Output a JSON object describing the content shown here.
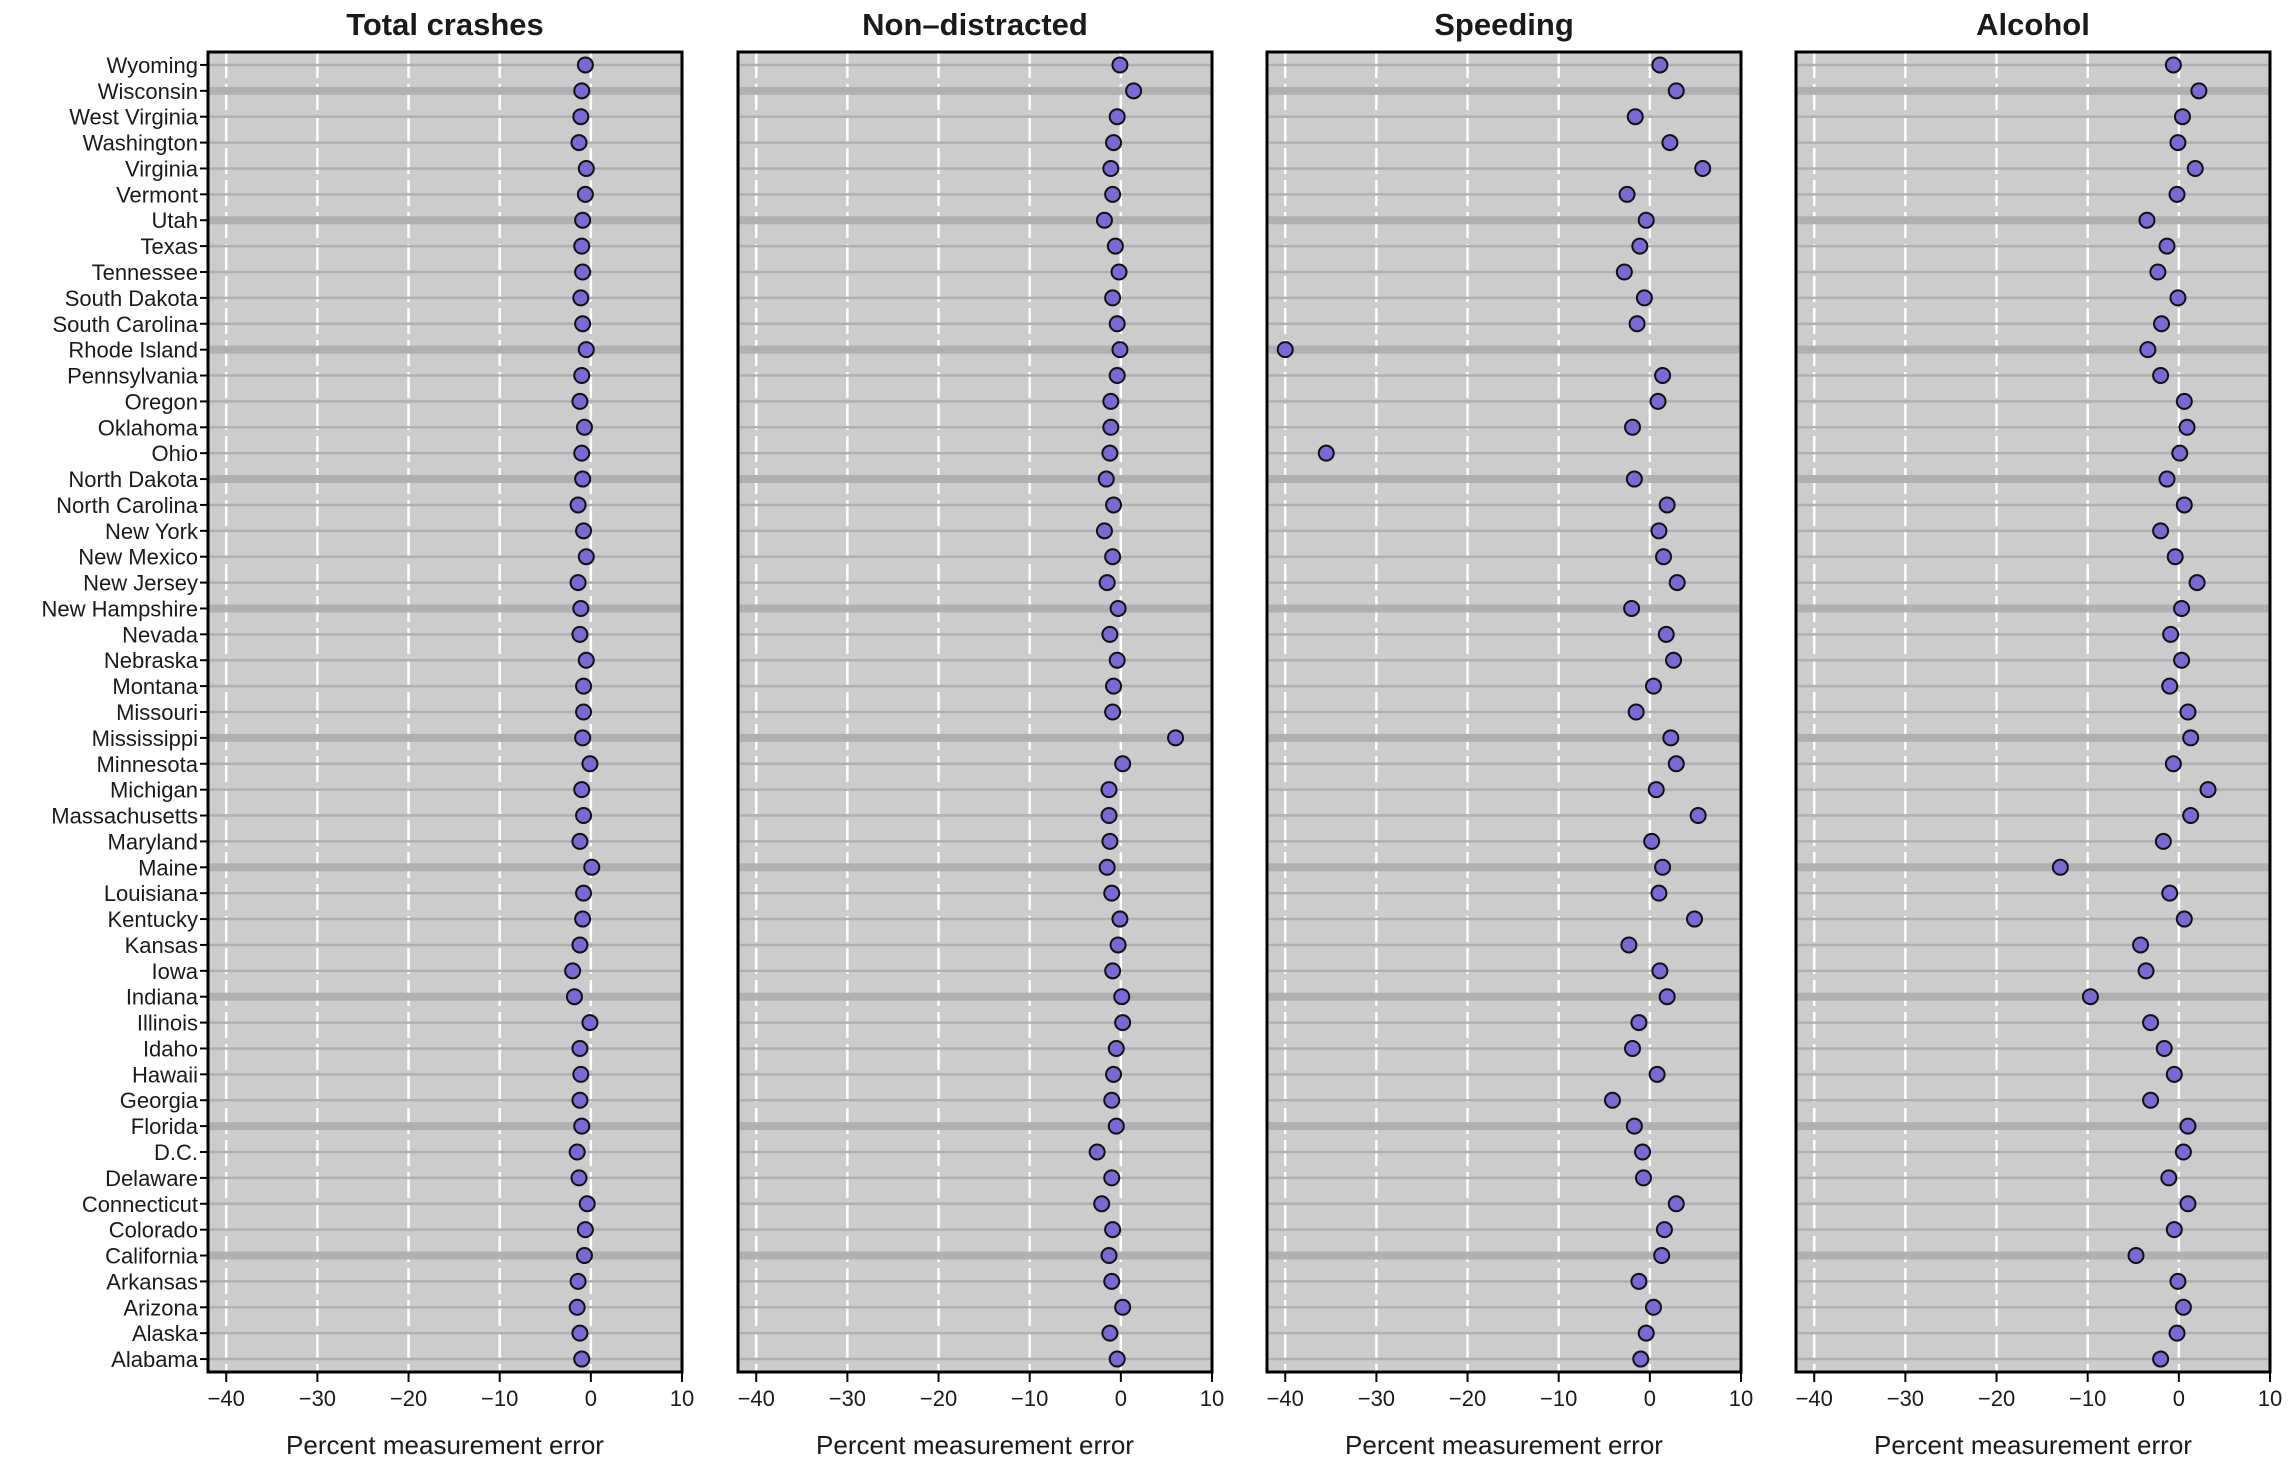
{
  "chart_data": {
    "type": "scatter",
    "xlabel": "Percent measurement error",
    "xlim": [
      -42,
      10
    ],
    "x_ticks": [
      -40,
      -30,
      -20,
      -10,
      0,
      10
    ],
    "grid": true,
    "point_color": "#7b68d4",
    "panel_background": "#cccccc",
    "states": [
      "Wyoming",
      "Wisconsin",
      "West Virginia",
      "Washington",
      "Virginia",
      "Vermont",
      "Utah",
      "Texas",
      "Tennessee",
      "South Dakota",
      "South Carolina",
      "Rhode Island",
      "Pennsylvania",
      "Oregon",
      "Oklahoma",
      "Ohio",
      "North Dakota",
      "North Carolina",
      "New York",
      "New Mexico",
      "New Jersey",
      "New Hampshire",
      "Nevada",
      "Nebraska",
      "Montana",
      "Missouri",
      "Mississippi",
      "Minnesota",
      "Michigan",
      "Massachusetts",
      "Maryland",
      "Maine",
      "Louisiana",
      "Kentucky",
      "Kansas",
      "Iowa",
      "Indiana",
      "Illinois",
      "Idaho",
      "Hawaii",
      "Georgia",
      "Florida",
      "D.C.",
      "Delaware",
      "Connecticut",
      "Colorado",
      "California",
      "Arkansas",
      "Arizona",
      "Alaska",
      "Alabama"
    ],
    "panels": [
      {
        "title": "Total crashes",
        "values": [
          -0.6,
          -1.0,
          -1.1,
          -1.3,
          -0.5,
          -0.6,
          -0.9,
          -1.0,
          -0.9,
          -1.1,
          -0.9,
          -0.5,
          -1.0,
          -1.2,
          -0.7,
          -1.0,
          -0.9,
          -1.4,
          -0.8,
          -0.5,
          -1.4,
          -1.1,
          -1.2,
          -0.5,
          -0.8,
          -0.8,
          -0.9,
          -0.1,
          -1.0,
          -0.8,
          -1.2,
          0.1,
          -0.8,
          -0.9,
          -1.2,
          -2.0,
          -1.8,
          -0.1,
          -1.2,
          -1.1,
          -1.2,
          -1.0,
          -1.5,
          -1.3,
          -0.4,
          -0.6,
          -0.7,
          -1.4,
          -1.5,
          -1.2,
          -1.0
        ]
      },
      {
        "title": "Non–distracted",
        "values": [
          -0.1,
          1.4,
          -0.4,
          -0.8,
          -1.1,
          -0.9,
          -1.8,
          -0.6,
          -0.2,
          -0.9,
          -0.4,
          -0.1,
          -0.4,
          -1.1,
          -1.1,
          -1.2,
          -1.6,
          -0.8,
          -1.8,
          -0.9,
          -1.5,
          -0.3,
          -1.2,
          -0.4,
          -0.8,
          -0.9,
          6.0,
          0.2,
          -1.3,
          -1.3,
          -1.2,
          -1.5,
          -1.0,
          -0.1,
          -0.3,
          -0.9,
          0.1,
          0.2,
          -0.5,
          -0.8,
          -1.0,
          -0.5,
          -2.6,
          -1.0,
          -2.1,
          -0.9,
          -1.3,
          -1.0,
          0.2,
          -1.2,
          -0.4
        ]
      },
      {
        "title": "Speeding",
        "values": [
          1.1,
          2.9,
          -1.6,
          2.2,
          5.8,
          -2.5,
          -0.4,
          -1.1,
          -2.8,
          -0.6,
          -1.4,
          -40.0,
          1.4,
          0.9,
          -1.9,
          -35.5,
          -1.7,
          1.9,
          1.0,
          1.5,
          3.0,
          -2.0,
          1.8,
          2.6,
          0.4,
          -1.5,
          2.3,
          2.9,
          0.7,
          5.3,
          0.2,
          1.4,
          1.0,
          4.9,
          -2.3,
          1.1,
          1.9,
          -1.2,
          -1.9,
          0.8,
          -4.1,
          -1.7,
          -0.8,
          -0.7,
          2.9,
          1.6,
          1.3,
          -1.2,
          0.4,
          -0.4,
          -1.0
        ]
      },
      {
        "title": "Alcohol",
        "values": [
          -0.6,
          2.2,
          0.4,
          -0.1,
          1.8,
          -0.2,
          -3.5,
          -1.3,
          -2.3,
          -0.1,
          -1.9,
          -3.4,
          -2.0,
          0.6,
          0.9,
          0.1,
          -1.3,
          0.6,
          -2.0,
          -0.4,
          2.0,
          0.3,
          -0.9,
          0.3,
          -1.0,
          1.0,
          1.3,
          -0.6,
          3.2,
          1.3,
          -1.7,
          -13.0,
          -1.0,
          0.6,
          -4.2,
          -3.6,
          -9.7,
          -3.1,
          -1.6,
          -0.5,
          -3.1,
          1.0,
          0.5,
          -1.1,
          1.0,
          -0.5,
          -4.7,
          -0.1,
          0.5,
          -0.2,
          -2.0
        ]
      }
    ]
  }
}
